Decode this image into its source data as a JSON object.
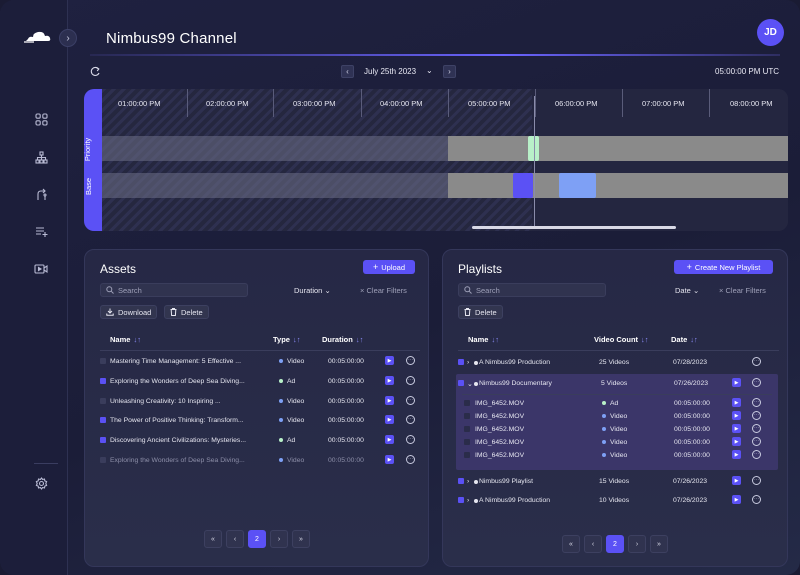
{
  "app": {
    "title": "Nimbus99 Channel",
    "avatar_initials": "JD",
    "accent": "#5b51f5"
  },
  "sidebar": {
    "icons": [
      "cloud-logo-icon",
      "grid-icon",
      "hierarchy-icon",
      "route-icon",
      "playlist-add-icon",
      "video-icon",
      "settings-icon"
    ]
  },
  "date_bar": {
    "date": "July 25th 2023",
    "time": "05:00:00 PM UTC"
  },
  "timeline": {
    "hours": [
      "01:00:00 PM",
      "02:00:00 PM",
      "03:00:00 PM",
      "04:00:00 PM",
      "05:00:00 PM",
      "06:00:00 PM",
      "07:00:00 PM",
      "08:00:00 PM"
    ],
    "rows": [
      "Priority",
      "Base"
    ],
    "colors": {
      "priority_block": "#b8f0c8",
      "base_block_a": "#5b51f5",
      "base_block_b": "#7ea0f5"
    }
  },
  "assets": {
    "title": "Assets",
    "upload_label": "Upload",
    "search_placeholder": "Search",
    "sort_label": "Duration",
    "clear_label": "Clear Filters",
    "download_label": "Download",
    "delete_label": "Delete",
    "columns": [
      "Name",
      "Type",
      "Duration"
    ],
    "rows": [
      {
        "name": "Mastering Time Management: 5 Effective ...",
        "type": "Video",
        "duration": "00:05:00:00",
        "checked": false,
        "dim": false
      },
      {
        "name": "Exploring the Wonders of Deep Sea Diving...",
        "type": "Ad",
        "duration": "00:05:00:00",
        "checked": true,
        "dim": false
      },
      {
        "name": "Unleashing Creativity: 10 Inspiring ...",
        "type": "Video",
        "duration": "00:05:00:00",
        "checked": false,
        "dim": false
      },
      {
        "name": "The Power of Positive Thinking: Transform...",
        "type": "Video",
        "duration": "00:05:00:00",
        "checked": true,
        "dim": false
      },
      {
        "name": "Discovering Ancient Civilizations: Mysteries...",
        "type": "Ad",
        "duration": "00:05:00:00",
        "checked": true,
        "dim": false
      },
      {
        "name": "Exploring the Wonders of Deep Sea Diving...",
        "type": "Video",
        "duration": "00:05:00:00",
        "checked": false,
        "dim": true
      }
    ],
    "page": "2"
  },
  "playlists": {
    "title": "Playlists",
    "create_label": "Create New Playlist",
    "search_placeholder": "Search",
    "sort_label": "Date",
    "clear_label": "Clear Filters",
    "delete_label": "Delete",
    "columns": [
      "Name",
      "Video Count",
      "Date"
    ],
    "rows": [
      {
        "name": "A Nimbus99 Production",
        "count": "25 Videos",
        "date": "07/28/2023",
        "expanded": false
      },
      {
        "name": "Nimbus99 Documentary",
        "count": "5 Videos",
        "date": "07/26/2023",
        "expanded": true
      },
      {
        "name": "Nimbus99 Playlist",
        "count": "15 Videos",
        "date": "07/26/2023",
        "expanded": false
      },
      {
        "name": "A Nimbus99 Production",
        "count": "10 Videos",
        "date": "07/26/2023",
        "expanded": false
      }
    ],
    "children": [
      {
        "name": "IMG_6452.MOV",
        "type": "Ad",
        "duration": "00:05:00:00"
      },
      {
        "name": "IMG_6452.MOV",
        "type": "Video",
        "duration": "00:05:00:00"
      },
      {
        "name": "IMG_6452.MOV",
        "type": "Video",
        "duration": "00:05:00:00"
      },
      {
        "name": "IMG_6452.MOV",
        "type": "Video",
        "duration": "00:05:00:00"
      },
      {
        "name": "IMG_6452.MOV",
        "type": "Video",
        "duration": "00:05:00:00"
      }
    ],
    "page": "2"
  },
  "pager": {
    "first": "«",
    "prev": "‹",
    "next": "›",
    "last": "»"
  }
}
